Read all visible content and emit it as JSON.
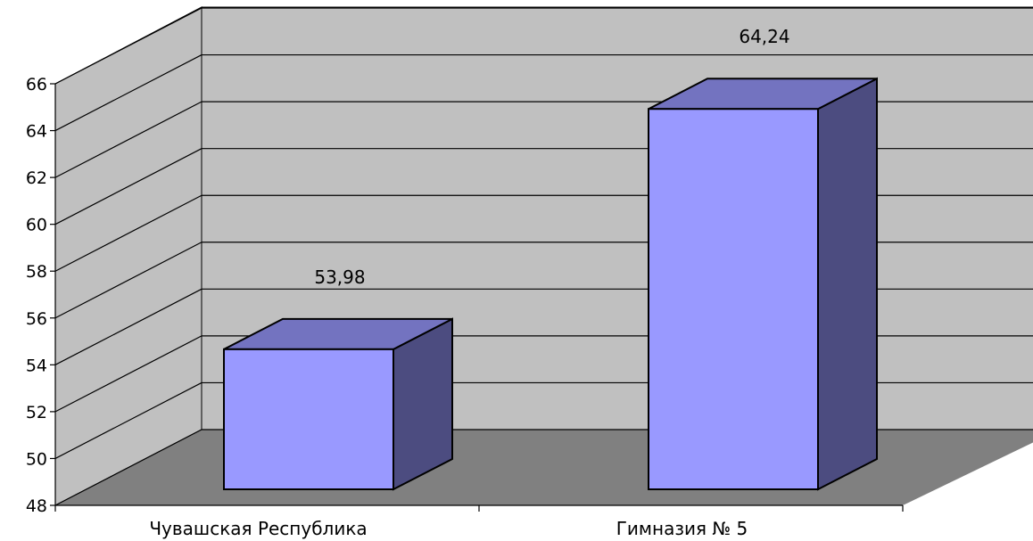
{
  "chart_data": {
    "type": "bar",
    "style": "3d-column",
    "categories": [
      "Чувашская Республика",
      "Гимназия № 5"
    ],
    "values": [
      53.98,
      64.24
    ],
    "data_labels": [
      "53,98",
      "64,24"
    ],
    "title": "",
    "xlabel": "",
    "ylabel": "",
    "ylim": [
      48,
      66
    ],
    "yticks": [
      48,
      50,
      52,
      54,
      56,
      58,
      60,
      62,
      64,
      66
    ],
    "grid": true,
    "legend": "none",
    "colors": {
      "bar_front": "#9999ff",
      "bar_top": "#7373c0",
      "bar_side": "#4c4c80",
      "back_wall": "#c0c0c0",
      "side_wall": "#c0c0c0",
      "floor": "#808080",
      "grid": "#000000"
    }
  }
}
